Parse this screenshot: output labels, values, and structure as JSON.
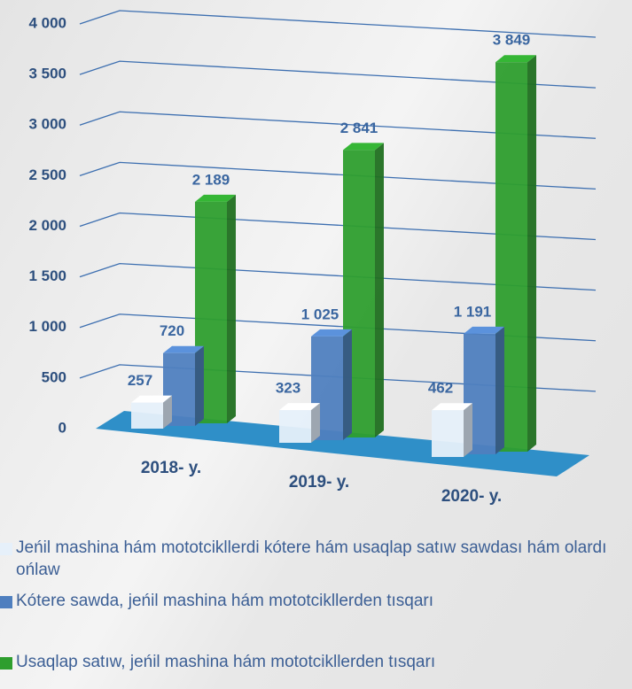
{
  "chart_data": {
    "type": "bar3d",
    "categories": [
      "2018- y.",
      "2019- y.",
      "2020- y."
    ],
    "series": [
      {
        "name": "Jeńil mashina hám mototcikllerdi kótere hám usaqlap satıw sawdası hám olardı ońlaw",
        "color": "#e6f0fa",
        "values": [
          257,
          323,
          462
        ]
      },
      {
        "name": "Kótere sawda, jeńil mashina hám mototcikllerden tısqarı",
        "color": "#4f7fbf",
        "values": [
          720,
          1025,
          1191
        ],
        "value_labels": [
          "720",
          "1 025",
          "1 191"
        ]
      },
      {
        "name": "Usaqlap satıw, jeńil mashina hám mototcikllerden tısqarı",
        "color": "#2e9e2e",
        "values": [
          2189,
          2841,
          3849
        ],
        "value_labels": [
          "2 189",
          "2 841",
          "3 849"
        ]
      }
    ],
    "ylim": [
      0,
      4000
    ],
    "yticks": [
      0,
      500,
      {
        "value": 1000,
        "label": "1 000"
      },
      {
        "value": 1500,
        "label": "1 500"
      },
      {
        "value": 2000,
        "label": "2 000"
      },
      {
        "value": 2500,
        "label": "2 500"
      },
      {
        "value": 3000,
        "label": "3 000"
      },
      {
        "value": 3500,
        "label": "3 500"
      },
      {
        "value": 4000,
        "label": "4 000"
      }
    ],
    "grid": true,
    "legend": "bottom"
  }
}
